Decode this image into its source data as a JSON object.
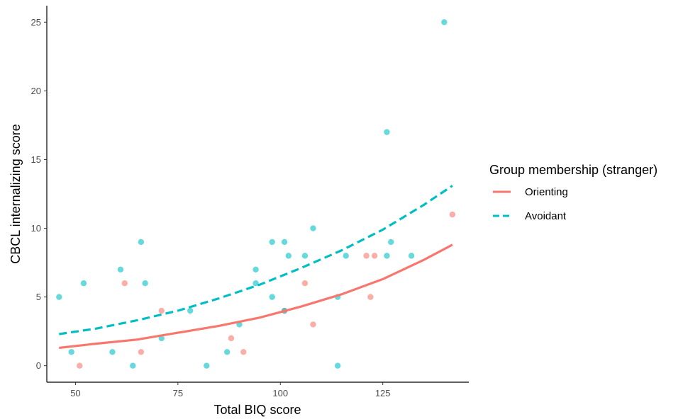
{
  "chart_data": {
    "type": "scatter",
    "xlabel": "Total BIQ score",
    "ylabel": "CBCL internalizing score",
    "xlim": [
      43,
      146
    ],
    "ylim": [
      -1.2,
      26.2
    ],
    "xticks": [
      50,
      75,
      100,
      125
    ],
    "yticks": [
      0,
      5,
      10,
      15,
      20,
      25
    ],
    "grid": false,
    "legend": {
      "title": "Group membership (stranger)",
      "position": "right"
    },
    "series": [
      {
        "name": "Orienting",
        "color": "#F8766D",
        "line_style": "solid",
        "points": [
          [
            51,
            0
          ],
          [
            62,
            6
          ],
          [
            66,
            1
          ],
          [
            71,
            4
          ],
          [
            88,
            2
          ],
          [
            91,
            1
          ],
          [
            101,
            4
          ],
          [
            106,
            6
          ],
          [
            108,
            3
          ],
          [
            121,
            8
          ],
          [
            122,
            5
          ],
          [
            123,
            8
          ],
          [
            142,
            11
          ]
        ],
        "fit_curve": {
          "x": [
            46,
            55,
            65,
            75,
            85,
            95,
            105,
            115,
            125,
            135,
            142
          ],
          "y": [
            1.3,
            1.6,
            1.9,
            2.4,
            2.9,
            3.5,
            4.3,
            5.2,
            6.3,
            7.7,
            8.8
          ]
        }
      },
      {
        "name": "Avoidant",
        "color": "#00BFC4",
        "line_style": "dashed",
        "points": [
          [
            46,
            5
          ],
          [
            49,
            1
          ],
          [
            52,
            6
          ],
          [
            59,
            1
          ],
          [
            61,
            7
          ],
          [
            64,
            0
          ],
          [
            66,
            9
          ],
          [
            67,
            6
          ],
          [
            71,
            2
          ],
          [
            78,
            4
          ],
          [
            82,
            0
          ],
          [
            87,
            1
          ],
          [
            90,
            3
          ],
          [
            94,
            7
          ],
          [
            94,
            6
          ],
          [
            98,
            9
          ],
          [
            98,
            5
          ],
          [
            101,
            9
          ],
          [
            101,
            4
          ],
          [
            102,
            8
          ],
          [
            106,
            8
          ],
          [
            108,
            10
          ],
          [
            114,
            5
          ],
          [
            114,
            0
          ],
          [
            116,
            8
          ],
          [
            126,
            17
          ],
          [
            126,
            8
          ],
          [
            127,
            9
          ],
          [
            132,
            8
          ],
          [
            140,
            25
          ]
        ],
        "fit_curve": {
          "x": [
            46,
            55,
            65,
            75,
            85,
            95,
            105,
            115,
            125,
            135,
            142
          ],
          "y": [
            2.3,
            2.7,
            3.3,
            4.0,
            4.9,
            5.9,
            7.1,
            8.4,
            9.9,
            11.7,
            13.1
          ]
        }
      }
    ]
  }
}
